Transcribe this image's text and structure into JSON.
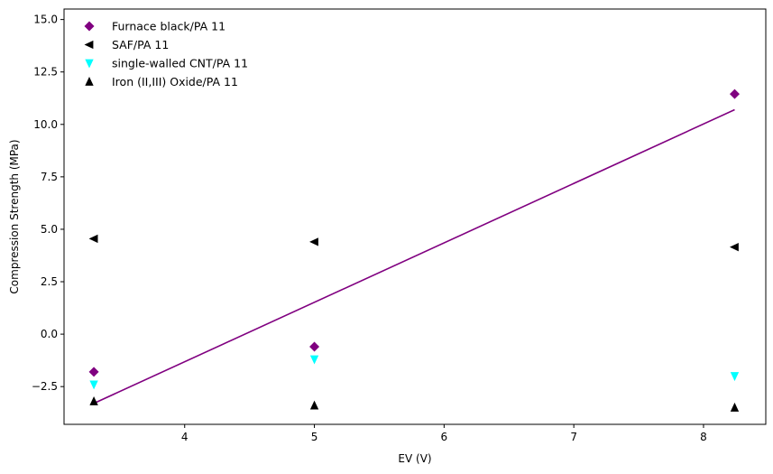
{
  "chart_data": {
    "type": "scatter",
    "xlabel": "EV (V)",
    "ylabel": "Compression Strength (MPa)",
    "xlim": [
      3.07,
      8.48
    ],
    "ylim": [
      -4.3,
      15.5
    ],
    "x_ticks": [
      4,
      5,
      6,
      7,
      8
    ],
    "x_tick_labels": [
      "4",
      "5",
      "6",
      "7",
      "8"
    ],
    "y_ticks": [
      -2.5,
      0.0,
      2.5,
      5.0,
      7.5,
      10.0,
      12.5,
      15.0
    ],
    "y_tick_labels": [
      "−2.5",
      "0.0",
      "2.5",
      "5.0",
      "7.5",
      "10.0",
      "12.5",
      "15.0"
    ],
    "grid": false,
    "legend_position": "top-left",
    "series": [
      {
        "name": "Furnace black/PA 11",
        "marker": "diamond",
        "color": "#800080",
        "points": [
          {
            "x": 3.3,
            "y": -1.8
          },
          {
            "x": 5.0,
            "y": -0.6
          },
          {
            "x": 8.24,
            "y": 11.45
          }
        ]
      },
      {
        "name": "SAF/PA 11",
        "marker": "triangle-left",
        "color": "#000000",
        "points": [
          {
            "x": 3.3,
            "y": 4.55
          },
          {
            "x": 5.0,
            "y": 4.4
          },
          {
            "x": 8.24,
            "y": 4.15
          }
        ]
      },
      {
        "name": "single-walled CNT/PA 11",
        "marker": "triangle-down",
        "color": "#00ffff",
        "points": [
          {
            "x": 3.3,
            "y": -2.4
          },
          {
            "x": 5.0,
            "y": -1.2
          },
          {
            "x": 8.24,
            "y": -2.0
          }
        ]
      },
      {
        "name": "Iron (II,III) Oxide/PA 11",
        "marker": "triangle-up",
        "color": "#000000",
        "points": [
          {
            "x": 3.3,
            "y": -3.2
          },
          {
            "x": 5.0,
            "y": -3.4
          },
          {
            "x": 8.24,
            "y": -3.5
          }
        ]
      }
    ],
    "trend_line": {
      "color": "#800080",
      "points": [
        {
          "x": 3.3,
          "y": -3.3
        },
        {
          "x": 8.24,
          "y": 10.7
        }
      ]
    }
  }
}
